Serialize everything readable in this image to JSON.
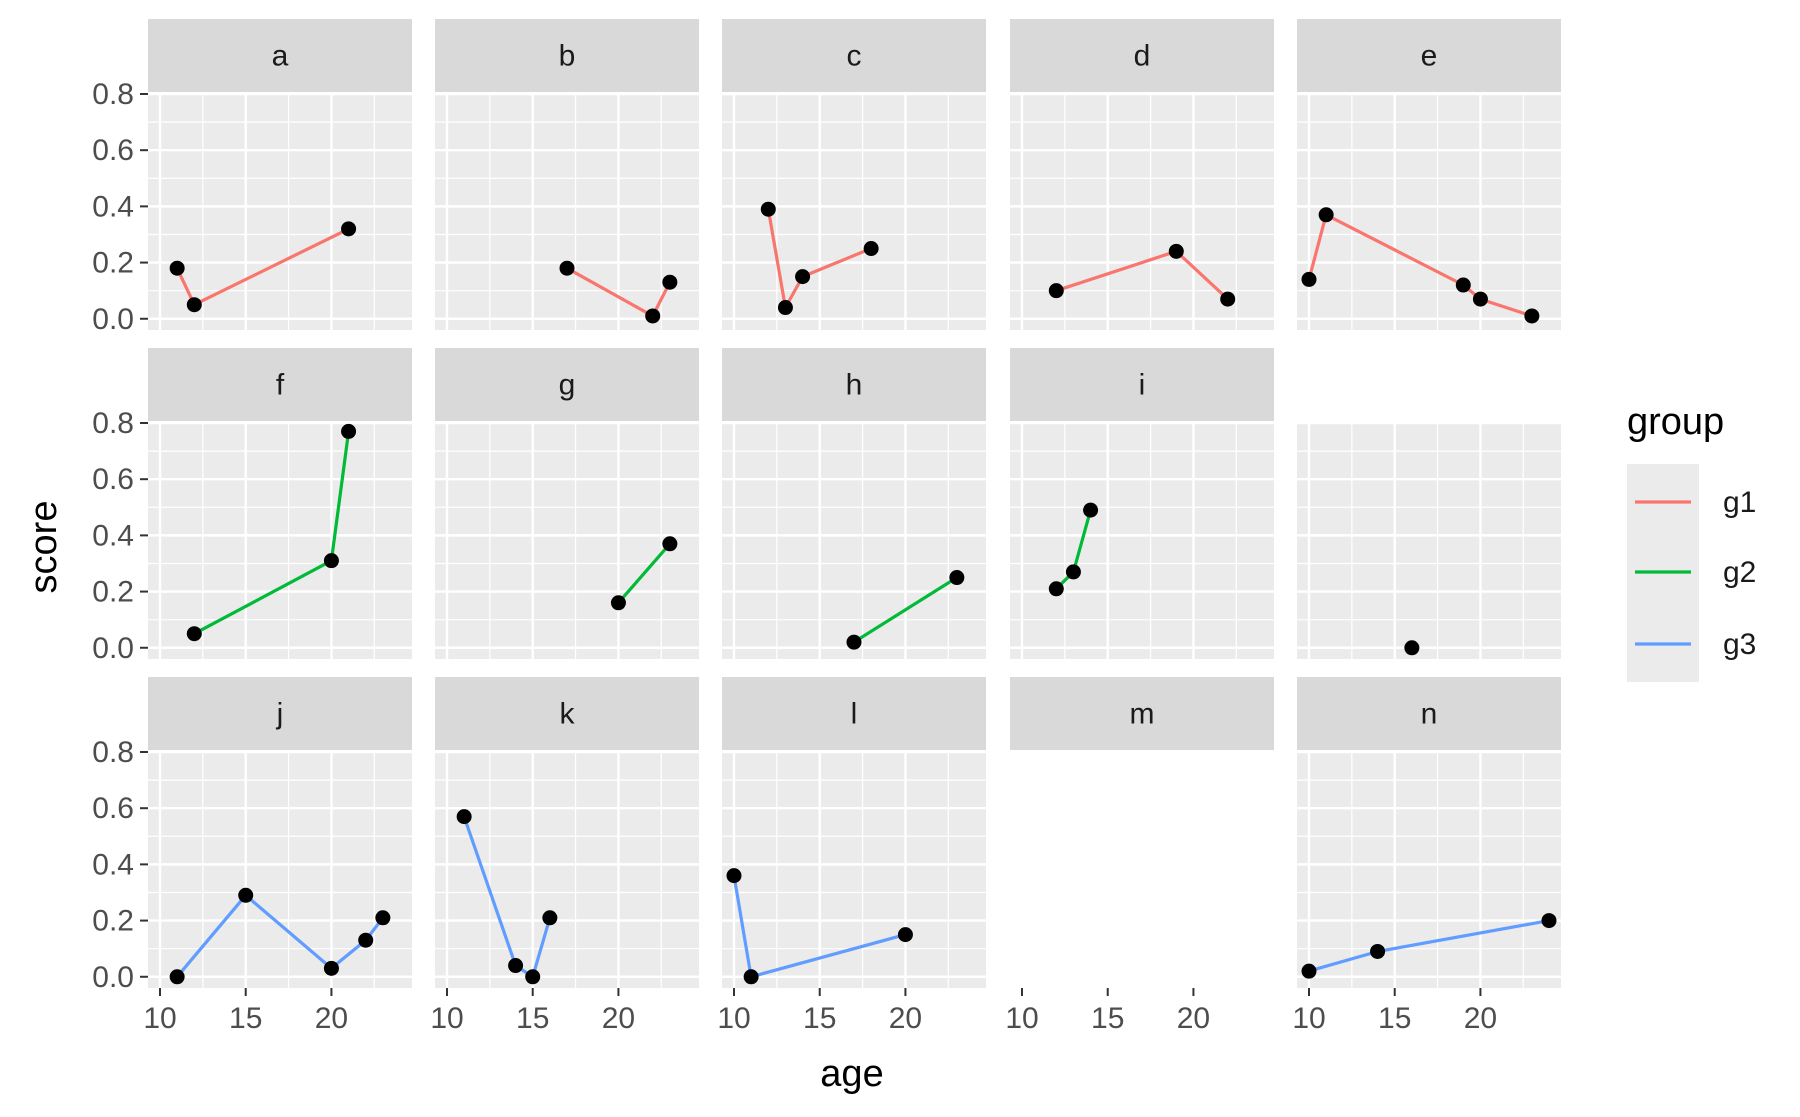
{
  "chart_data": {
    "type": "line",
    "facet_layout": "wrap",
    "xlabel": "age",
    "ylabel": "score",
    "xlim": [
      9.3,
      24.7
    ],
    "ylim": [
      -0.04,
      0.8
    ],
    "x_ticks": [
      10,
      15,
      20
    ],
    "y_ticks": [
      0.0,
      0.2,
      0.4,
      0.6,
      0.8
    ],
    "x_tick_labels": [
      "10",
      "15",
      "20"
    ],
    "y_tick_labels": [
      "0.0",
      "0.2",
      "0.4",
      "0.6",
      "0.8"
    ],
    "grid": true,
    "legend": {
      "title": "group",
      "position": "right",
      "entries": [
        {
          "name": "g1",
          "color": "#F8766D"
        },
        {
          "name": "g2",
          "color": "#00BA38"
        },
        {
          "name": "g3",
          "color": "#619CFF"
        }
      ]
    },
    "point_color": "#000000",
    "panels": [
      {
        "label": "a",
        "group": "g1",
        "x": [
          11,
          12,
          21
        ],
        "y": [
          0.18,
          0.05,
          0.32
        ]
      },
      {
        "label": "b",
        "group": "g1",
        "x": [
          17,
          22,
          23
        ],
        "y": [
          0.18,
          0.01,
          0.13
        ]
      },
      {
        "label": "c",
        "group": "g1",
        "x": [
          12,
          13,
          14,
          18
        ],
        "y": [
          0.39,
          0.04,
          0.15,
          0.25
        ]
      },
      {
        "label": "d",
        "group": "g1",
        "x": [
          12,
          19,
          22
        ],
        "y": [
          0.1,
          0.24,
          0.07
        ]
      },
      {
        "label": "e",
        "group": "g1",
        "x": [
          10,
          11,
          19,
          20,
          23
        ],
        "y": [
          0.14,
          0.37,
          0.12,
          0.07,
          0.01
        ]
      },
      {
        "label": "f",
        "group": "g2",
        "x": [
          12,
          20,
          21
        ],
        "y": [
          0.05,
          0.31,
          0.77
        ]
      },
      {
        "label": "g",
        "group": "g2",
        "x": [
          20,
          23
        ],
        "y": [
          0.16,
          0.37
        ]
      },
      {
        "label": "h",
        "group": "g2",
        "x": [
          17,
          23
        ],
        "y": [
          0.02,
          0.25
        ]
      },
      {
        "label": "i",
        "group": "g2",
        "x": [
          12,
          13,
          14
        ],
        "y": [
          0.21,
          0.27,
          0.49
        ]
      },
      {
        "label": "",
        "group": "",
        "x": [
          16
        ],
        "y": [
          0.0
        ]
      },
      {
        "label": "j",
        "group": "g3",
        "x": [
          11,
          15,
          20,
          22,
          23
        ],
        "y": [
          0.0,
          0.29,
          0.03,
          0.13,
          0.21
        ]
      },
      {
        "label": "k",
        "group": "g3",
        "x": [
          11,
          14,
          15,
          16
        ],
        "y": [
          0.57,
          0.04,
          0.0,
          0.21
        ]
      },
      {
        "label": "l",
        "group": "g3",
        "x": [
          10,
          11,
          20
        ],
        "y": [
          0.36,
          0.0,
          0.15
        ]
      },
      {
        "label": "m",
        "group": "",
        "x": [],
        "y": []
      },
      {
        "label": "n",
        "group": "g3",
        "x": [
          10,
          14,
          24
        ],
        "y": [
          0.02,
          0.09,
          0.2
        ]
      }
    ]
  }
}
